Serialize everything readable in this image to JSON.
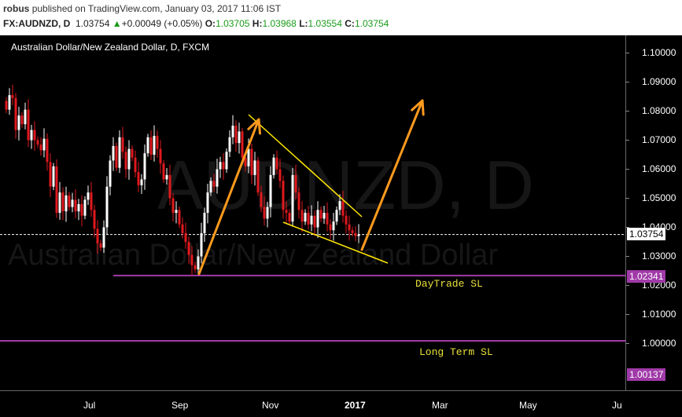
{
  "header": {
    "user": "robus",
    "published": "published on TradingView.com, January 03, 2017 11:06 IST",
    "symbol": "FX:AUDNZD, D",
    "last": "1.03754",
    "change": "+0.00049 (+0.05%)",
    "o_label": "O:",
    "o": "1.03705",
    "h_label": "H:",
    "h": "1.03968",
    "l_label": "L:",
    "l": "1.03554",
    "c_label": "C:",
    "c": "1.03754"
  },
  "colors": {
    "up": "#ffffff",
    "down": "#e0191e",
    "trend": "#ffe600",
    "arrow": "#ff9a1e",
    "sl": "#a03aa8",
    "current": "#ffffff"
  },
  "chart_data": {
    "type": "candlestick",
    "title": "Australian Dollar/New Zealand Dollar, D, FXCM",
    "watermark": "AUDNZD, D",
    "watermark_sub": "Australian Dollar/New Zealand Dollar",
    "ylim": [
      0.995,
      1.105
    ],
    "y_ticks": [
      1.0,
      1.01,
      1.02,
      1.03,
      1.04,
      1.05,
      1.06,
      1.07,
      1.08,
      1.09,
      1.1
    ],
    "y_tick_labels": [
      "1.00000",
      "1.01000",
      "1.02000",
      "1.03000",
      "1.04000",
      "1.05000",
      "1.06000",
      "1.07000",
      "1.08000",
      "1.09000",
      "1.10000"
    ],
    "x_ticks": [
      {
        "label": "Jul",
        "bold": false
      },
      {
        "label": "Sep",
        "bold": false
      },
      {
        "label": "Nov",
        "bold": false
      },
      {
        "label": "2017",
        "bold": true
      },
      {
        "label": "Mar",
        "bold": false
      },
      {
        "label": "May",
        "bold": false
      },
      {
        "label": "Ju",
        "bold": false
      }
    ],
    "current_price": 1.03754,
    "levels": [
      {
        "name": "DayTrade SL",
        "value": 1.02341,
        "label": "1.02341"
      },
      {
        "name": "Long Term SL",
        "value": 1.00137,
        "label": "1.00137"
      }
    ],
    "closes": [
      1.0805,
      1.0855,
      1.0845,
      1.0735,
      1.0785,
      1.0755,
      1.0805,
      1.07,
      1.0735,
      1.07,
      1.0685,
      1.0665,
      1.0705,
      1.0625,
      1.054,
      1.061,
      1.045,
      1.052,
      1.0455,
      1.051,
      1.047,
      1.0495,
      1.0455,
      1.048,
      1.044,
      1.0495,
      1.052,
      1.046,
      1.0395,
      1.0345,
      1.033,
      1.04,
      1.054,
      1.063,
      1.068,
      1.0605,
      1.071,
      1.066,
      1.06,
      1.067,
      1.064,
      1.059,
      1.0545,
      1.0565,
      1.0655,
      1.071,
      1.065,
      1.0715,
      1.067,
      1.062,
      1.0565,
      1.058,
      1.05,
      1.045,
      1.046,
      1.041,
      1.038,
      1.035,
      1.0305,
      1.027,
      1.0255,
      1.03,
      1.038,
      1.045,
      1.052,
      1.056,
      1.054,
      1.06,
      1.0625,
      1.06,
      1.066,
      1.071,
      1.075,
      1.069,
      1.073,
      1.064,
      1.061,
      1.067,
      1.058,
      1.063,
      1.052,
      1.047,
      1.043,
      1.047,
      1.058,
      1.064,
      1.06,
      1.056,
      1.046,
      1.045,
      1.042,
      1.058,
      1.052,
      1.046,
      1.042,
      1.045,
      1.041,
      1.044,
      1.04,
      1.046,
      1.043,
      1.045,
      1.041,
      1.039,
      1.042,
      1.046,
      1.049,
      1.044,
      1.041,
      1.039,
      1.038,
      1.037,
      1.0375
    ],
    "annotations": [
      {
        "text": "DayTrade SL"
      },
      {
        "text": "Long Term SL"
      }
    ]
  }
}
